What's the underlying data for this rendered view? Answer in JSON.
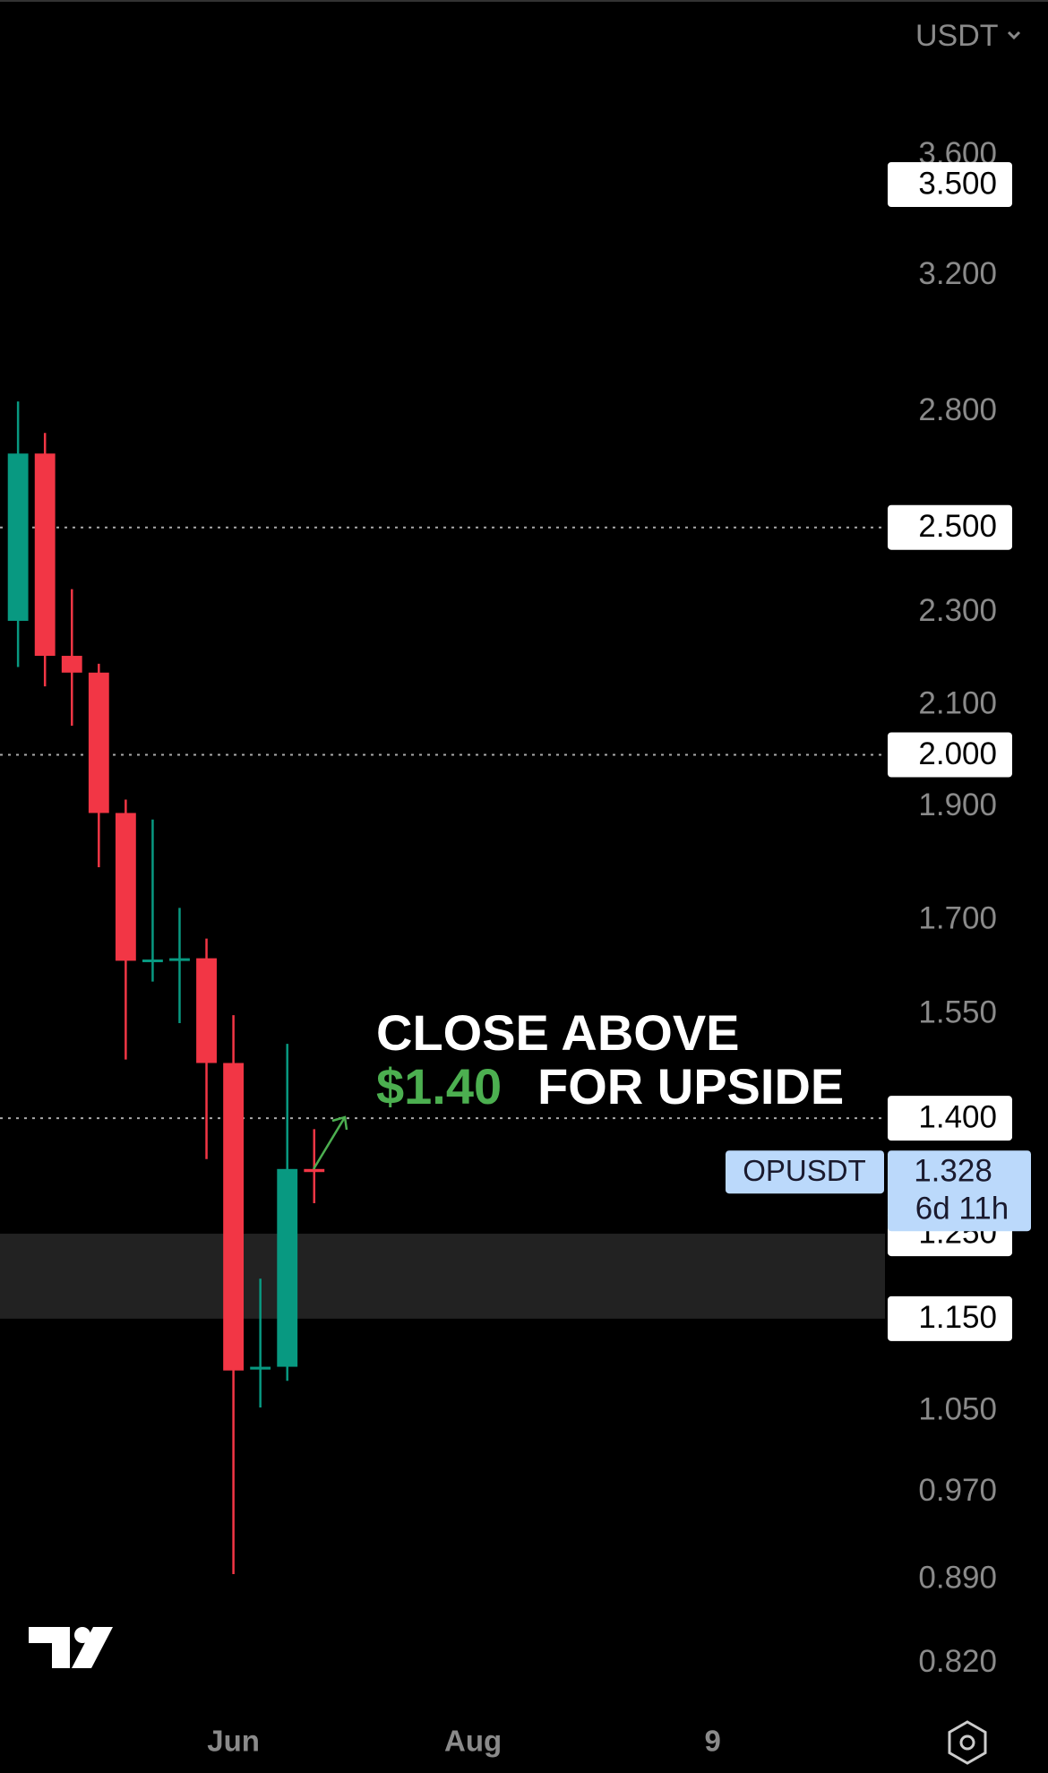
{
  "chart_data": {
    "type": "candlestick",
    "currency": "USDT",
    "symbol": "OPUSDT",
    "log_scale": true,
    "ylim": [
      0.781,
      4.195
    ],
    "xlim": [
      -0.67,
      32.2
    ],
    "yticks": [
      {
        "value": 3.6,
        "label": "3.600"
      },
      {
        "value": 3.2,
        "label": "3.200"
      },
      {
        "value": 2.8,
        "label": "2.800"
      },
      {
        "value": 2.3,
        "label": "2.300"
      },
      {
        "value": 2.1,
        "label": "2.100"
      },
      {
        "value": 1.9,
        "label": "1.900"
      },
      {
        "value": 1.7,
        "label": "1.700"
      },
      {
        "value": 1.55,
        "label": "1.550"
      },
      {
        "value": 1.05,
        "label": "1.050"
      },
      {
        "value": 0.97,
        "label": "0.970"
      },
      {
        "value": 0.89,
        "label": "0.890"
      },
      {
        "value": 0.82,
        "label": "0.820"
      }
    ],
    "xticks": [
      {
        "value": 8,
        "label": "Jun"
      },
      {
        "value": 16.9,
        "label": "Aug"
      },
      {
        "value": 25.8,
        "label": "9"
      }
    ],
    "up_color": "#089981",
    "down_color": "#f23645",
    "open": [
      2.281,
      2.688,
      2.204,
      2.168,
      1.889,
      1.634,
      1.635,
      1.638,
      1.478,
      1.094,
      1.097,
      1.332
    ],
    "high": [
      2.829,
      2.743,
      2.353,
      2.187,
      1.914,
      1.877,
      1.721,
      1.67,
      1.549,
      1.196,
      1.506,
      1.385
    ],
    "low": [
      2.18,
      2.139,
      2.058,
      1.791,
      1.483,
      1.601,
      1.537,
      1.345,
      0.895,
      1.054,
      1.082,
      1.288
    ],
    "close": [
      2.688,
      2.204,
      2.168,
      1.889,
      1.634,
      1.636,
      1.638,
      1.478,
      1.093,
      1.097,
      1.332,
      1.328
    ],
    "zone": [
      1.15,
      1.25
    ],
    "levels": [
      {
        "value": 3.5,
        "label": "3.500",
        "line": false
      },
      {
        "value": 2.5,
        "label": "2.500",
        "line": true
      },
      {
        "value": 2.0,
        "label": "2.000",
        "line": true
      },
      {
        "value": 1.4,
        "label": "1.400",
        "line": true
      },
      {
        "value": 1.25,
        "label": "1.250",
        "line": false
      },
      {
        "value": 1.15,
        "label": "1.150",
        "line": false
      }
    ],
    "last_price": {
      "value": 1.328,
      "label": "1.328",
      "countdown": "6d 11h"
    },
    "annotation": [
      "CLOSE ABOVE",
      "$1.40",
      "FOR UPSIDE"
    ]
  }
}
